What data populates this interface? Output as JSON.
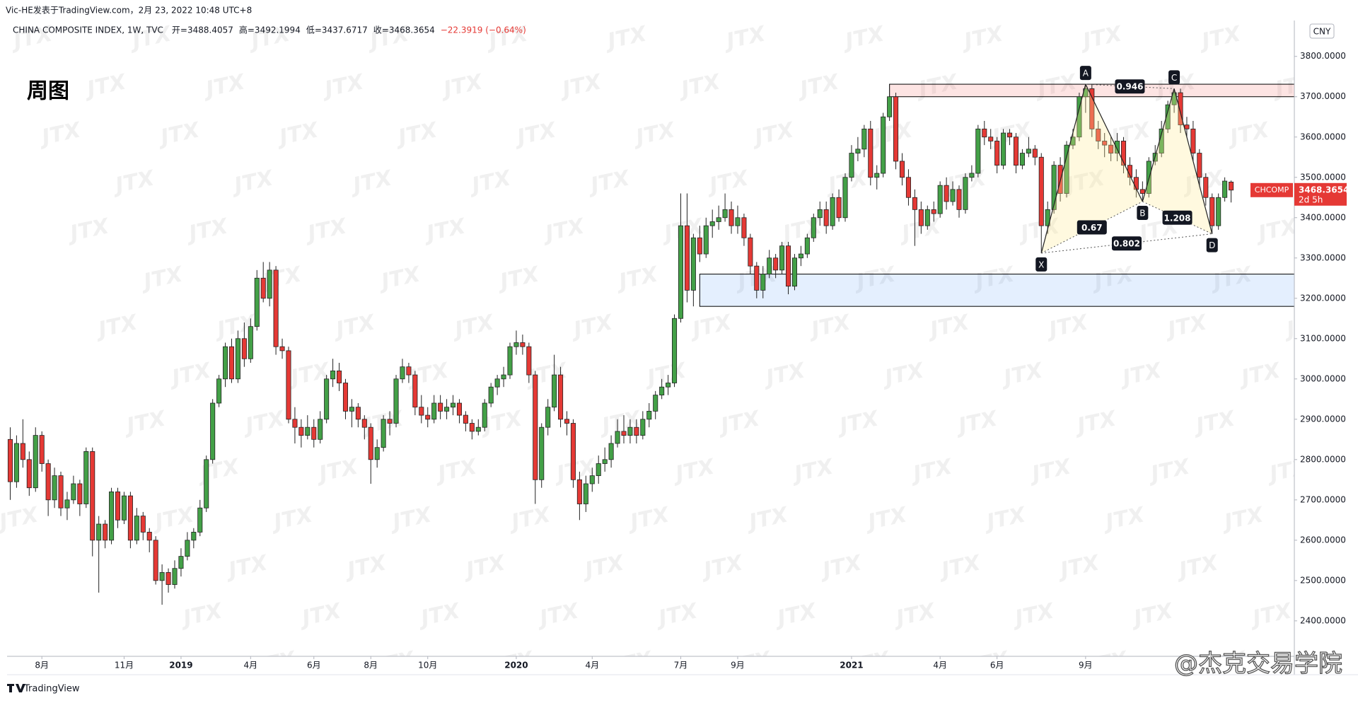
{
  "chart_data": {
    "type": "candlestick",
    "header": "Vic-HE发表于TradingView.com，2月 23, 2022 10:48 UTC+8",
    "symbol": "CHINA COMPOSITE INDEX, 1W, TVC",
    "legend_items": [
      "开=3488.4057",
      "高=3492.1994",
      "低=3437.6717",
      "收=3468.3654",
      "−22.3919 (−0.64%)"
    ],
    "title": "周图",
    "currency": "CNY",
    "symbol_tag": "CHCOMP",
    "countdown": "2d 5h",
    "watermark": "JTX",
    "signature": "@杰克交易学院",
    "brand": "TradingView",
    "up_color": "#43a047",
    "down_color": "#e53935",
    "xlim": [
      -0.5,
      203
    ],
    "ylim": [
      2312,
      3889
    ],
    "yticks": [
      {
        "value": 2400,
        "label": "2400.0000"
      },
      {
        "value": 2500,
        "label": "2500.0000"
      },
      {
        "value": 2600,
        "label": "2600.0000"
      },
      {
        "value": 2700,
        "label": "2700.0000"
      },
      {
        "value": 2800,
        "label": "2800.0000"
      },
      {
        "value": 2900,
        "label": "2900.0000"
      },
      {
        "value": 3000,
        "label": "3000.0000"
      },
      {
        "value": 3100,
        "label": "3100.0000"
      },
      {
        "value": 3200,
        "label": "3200.0000"
      },
      {
        "value": 3300,
        "label": "3300.0000"
      },
      {
        "value": 3400,
        "label": "3400.0000"
      },
      {
        "value": 3500,
        "label": "3500.0000"
      },
      {
        "value": 3600,
        "label": "3600.0000"
      },
      {
        "value": 3700,
        "label": "3700.0000"
      },
      {
        "value": 3800,
        "label": "3800.0000"
      }
    ],
    "xticks": [
      {
        "value": 5,
        "label": "8月"
      },
      {
        "value": 18,
        "label": "11月"
      },
      {
        "value": 27,
        "label": "2019"
      },
      {
        "value": 38,
        "label": "4月"
      },
      {
        "value": 48,
        "label": "6月"
      },
      {
        "value": 57,
        "label": "8月"
      },
      {
        "value": 66,
        "label": "10月"
      },
      {
        "value": 80,
        "label": "2020"
      },
      {
        "value": 92,
        "label": "4月"
      },
      {
        "value": 106,
        "label": "7月"
      },
      {
        "value": 115,
        "label": "9月"
      },
      {
        "value": 133,
        "label": "2021"
      },
      {
        "value": 147,
        "label": "4月"
      },
      {
        "value": 156,
        "label": "6月"
      },
      {
        "value": 170,
        "label": "9月"
      }
    ],
    "zones": [
      {
        "from": 139,
        "top": 3731,
        "bottom": 3700,
        "color": "rgba(244,67,54,0.14)"
      },
      {
        "from": 109,
        "top": 3260,
        "bottom": 3180,
        "color": "rgba(33,120,243,0.12)"
      }
    ],
    "pattern_points": [
      {
        "label": "X",
        "index": 163,
        "price": 3312
      },
      {
        "label": "A",
        "index": 170,
        "price": 3731
      },
      {
        "label": "B",
        "index": 179,
        "price": 3440
      },
      {
        "label": "C",
        "index": 184,
        "price": 3720
      },
      {
        "label": "D",
        "index": 190,
        "price": 3360
      }
    ],
    "ratios": [
      {
        "from": 1,
        "to": 3,
        "value": 0.946
      },
      {
        "from": 0,
        "to": 2,
        "value": 0.67
      },
      {
        "from": 0,
        "to": 4,
        "value": 0.802
      },
      {
        "from": 2,
        "to": 4,
        "value": 1.208
      }
    ],
    "candles": [
      [
        2850,
        2880,
        2700,
        2745
      ],
      [
        2745,
        2860,
        2730,
        2840
      ],
      [
        2840,
        2900,
        2780,
        2800
      ],
      [
        2800,
        2820,
        2710,
        2730
      ],
      [
        2730,
        2880,
        2720,
        2860
      ],
      [
        2860,
        2870,
        2770,
        2790
      ],
      [
        2790,
        2800,
        2660,
        2700
      ],
      [
        2700,
        2780,
        2680,
        2760
      ],
      [
        2760,
        2770,
        2660,
        2680
      ],
      [
        2680,
        2720,
        2650,
        2700
      ],
      [
        2700,
        2760,
        2690,
        2740
      ],
      [
        2740,
        2750,
        2660,
        2690
      ],
      [
        2690,
        2830,
        2680,
        2820
      ],
      [
        2820,
        2830,
        2560,
        2600
      ],
      [
        2600,
        2660,
        2470,
        2640
      ],
      [
        2640,
        2650,
        2580,
        2600
      ],
      [
        2600,
        2730,
        2590,
        2720
      ],
      [
        2720,
        2730,
        2630,
        2650
      ],
      [
        2650,
        2720,
        2640,
        2710
      ],
      [
        2710,
        2720,
        2580,
        2600
      ],
      [
        2600,
        2680,
        2590,
        2660
      ],
      [
        2660,
        2670,
        2600,
        2620
      ],
      [
        2620,
        2630,
        2570,
        2600
      ],
      [
        2600,
        2610,
        2490,
        2500
      ],
      [
        2500,
        2540,
        2440,
        2520
      ],
      [
        2520,
        2530,
        2470,
        2490
      ],
      [
        2490,
        2550,
        2480,
        2530
      ],
      [
        2530,
        2580,
        2510,
        2560
      ],
      [
        2560,
        2620,
        2550,
        2600
      ],
      [
        2600,
        2630,
        2580,
        2620
      ],
      [
        2620,
        2700,
        2610,
        2680
      ],
      [
        2680,
        2810,
        2670,
        2800
      ],
      [
        2800,
        2950,
        2790,
        2940
      ],
      [
        2940,
        3010,
        2930,
        3000
      ],
      [
        3000,
        3090,
        2980,
        3080
      ],
      [
        3080,
        3100,
        2990,
        3000
      ],
      [
        3000,
        3120,
        2990,
        3100
      ],
      [
        3100,
        3140,
        3030,
        3050
      ],
      [
        3050,
        3150,
        3040,
        3130
      ],
      [
        3130,
        3270,
        3120,
        3250
      ],
      [
        3250,
        3290,
        3190,
        3200
      ],
      [
        3200,
        3290,
        3180,
        3270
      ],
      [
        3270,
        3280,
        3060,
        3080
      ],
      [
        3080,
        3100,
        3050,
        3070
      ],
      [
        3070,
        3080,
        2890,
        2900
      ],
      [
        2900,
        2930,
        2840,
        2880
      ],
      [
        2880,
        2900,
        2830,
        2860
      ],
      [
        2860,
        2910,
        2850,
        2880
      ],
      [
        2880,
        2900,
        2830,
        2850
      ],
      [
        2850,
        2920,
        2840,
        2900
      ],
      [
        2900,
        3010,
        2890,
        3000
      ],
      [
        3000,
        3050,
        2980,
        3020
      ],
      [
        3020,
        3040,
        2970,
        2990
      ],
      [
        2990,
        3000,
        2900,
        2920
      ],
      [
        2920,
        2950,
        2880,
        2930
      ],
      [
        2930,
        2940,
        2880,
        2900
      ],
      [
        2900,
        2910,
        2850,
        2880
      ],
      [
        2880,
        2890,
        2740,
        2800
      ],
      [
        2800,
        2850,
        2780,
        2830
      ],
      [
        2830,
        2910,
        2820,
        2900
      ],
      [
        2900,
        2920,
        2860,
        2890
      ],
      [
        2890,
        3010,
        2880,
        3000
      ],
      [
        3000,
        3050,
        2990,
        3030
      ],
      [
        3030,
        3040,
        2990,
        3010
      ],
      [
        3010,
        3020,
        2910,
        2930
      ],
      [
        2930,
        2960,
        2890,
        2910
      ],
      [
        2910,
        2930,
        2880,
        2900
      ],
      [
        2900,
        2960,
        2890,
        2940
      ],
      [
        2940,
        2960,
        2900,
        2920
      ],
      [
        2920,
        2950,
        2900,
        2930
      ],
      [
        2930,
        2960,
        2910,
        2940
      ],
      [
        2940,
        2950,
        2890,
        2910
      ],
      [
        2910,
        2920,
        2870,
        2890
      ],
      [
        2890,
        2900,
        2850,
        2870
      ],
      [
        2870,
        2900,
        2860,
        2880
      ],
      [
        2880,
        2950,
        2870,
        2940
      ],
      [
        2940,
        2990,
        2930,
        2980
      ],
      [
        2980,
        3010,
        2960,
        3000
      ],
      [
        3000,
        3030,
        2980,
        3010
      ],
      [
        3010,
        3090,
        3000,
        3080
      ],
      [
        3080,
        3120,
        3060,
        3090
      ],
      [
        3090,
        3110,
        3060,
        3080
      ],
      [
        3080,
        3090,
        2990,
        3010
      ],
      [
        3010,
        3020,
        2690,
        2750
      ],
      [
        2750,
        2890,
        2730,
        2880
      ],
      [
        2880,
        2950,
        2860,
        2930
      ],
      [
        2930,
        3060,
        2920,
        3010
      ],
      [
        3010,
        3030,
        2880,
        2900
      ],
      [
        2900,
        2920,
        2860,
        2890
      ],
      [
        2890,
        2900,
        2730,
        2750
      ],
      [
        2750,
        2770,
        2650,
        2690
      ],
      [
        2690,
        2760,
        2670,
        2740
      ],
      [
        2740,
        2780,
        2720,
        2760
      ],
      [
        2760,
        2810,
        2740,
        2790
      ],
      [
        2790,
        2830,
        2770,
        2800
      ],
      [
        2800,
        2860,
        2780,
        2840
      ],
      [
        2840,
        2900,
        2830,
        2870
      ],
      [
        2870,
        2910,
        2840,
        2860
      ],
      [
        2860,
        2900,
        2840,
        2880
      ],
      [
        2880,
        2900,
        2840,
        2860
      ],
      [
        2860,
        2920,
        2850,
        2900
      ],
      [
        2900,
        2940,
        2880,
        2920
      ],
      [
        2920,
        2970,
        2900,
        2960
      ],
      [
        2960,
        3000,
        2950,
        2980
      ],
      [
        2980,
        3010,
        2960,
        2990
      ],
      [
        2990,
        3160,
        2980,
        3150
      ],
      [
        3150,
        3460,
        3140,
        3380
      ],
      [
        3380,
        3460,
        3190,
        3220
      ],
      [
        3220,
        3360,
        3180,
        3350
      ],
      [
        3350,
        3380,
        3290,
        3310
      ],
      [
        3310,
        3400,
        3300,
        3380
      ],
      [
        3380,
        3420,
        3350,
        3390
      ],
      [
        3390,
        3430,
        3370,
        3400
      ],
      [
        3400,
        3460,
        3390,
        3420
      ],
      [
        3420,
        3440,
        3360,
        3380
      ],
      [
        3380,
        3430,
        3360,
        3400
      ],
      [
        3400,
        3410,
        3330,
        3350
      ],
      [
        3350,
        3360,
        3260,
        3280
      ],
      [
        3280,
        3290,
        3200,
        3220
      ],
      [
        3220,
        3280,
        3200,
        3260
      ],
      [
        3260,
        3320,
        3250,
        3300
      ],
      [
        3300,
        3310,
        3250,
        3270
      ],
      [
        3270,
        3340,
        3260,
        3330
      ],
      [
        3330,
        3340,
        3210,
        3230
      ],
      [
        3230,
        3310,
        3220,
        3300
      ],
      [
        3300,
        3330,
        3280,
        3310
      ],
      [
        3310,
        3360,
        3300,
        3350
      ],
      [
        3350,
        3410,
        3340,
        3400
      ],
      [
        3400,
        3440,
        3380,
        3420
      ],
      [
        3420,
        3440,
        3360,
        3380
      ],
      [
        3380,
        3460,
        3370,
        3450
      ],
      [
        3450,
        3470,
        3390,
        3400
      ],
      [
        3400,
        3510,
        3390,
        3500
      ],
      [
        3500,
        3580,
        3490,
        3560
      ],
      [
        3560,
        3600,
        3540,
        3570
      ],
      [
        3570,
        3630,
        3550,
        3620
      ],
      [
        3620,
        3640,
        3480,
        3500
      ],
      [
        3500,
        3530,
        3470,
        3510
      ],
      [
        3510,
        3660,
        3500,
        3650
      ],
      [
        3650,
        3731,
        3640,
        3700
      ],
      [
        3700,
        3710,
        3520,
        3540
      ],
      [
        3540,
        3560,
        3480,
        3500
      ],
      [
        3500,
        3520,
        3430,
        3450
      ],
      [
        3450,
        3470,
        3330,
        3420
      ],
      [
        3420,
        3440,
        3360,
        3380
      ],
      [
        3380,
        3430,
        3370,
        3420
      ],
      [
        3420,
        3440,
        3390,
        3410
      ],
      [
        3410,
        3490,
        3400,
        3480
      ],
      [
        3480,
        3500,
        3420,
        3440
      ],
      [
        3440,
        3490,
        3430,
        3470
      ],
      [
        3470,
        3480,
        3400,
        3420
      ],
      [
        3420,
        3510,
        3410,
        3500
      ],
      [
        3500,
        3530,
        3490,
        3510
      ],
      [
        3510,
        3630,
        3500,
        3620
      ],
      [
        3620,
        3640,
        3580,
        3600
      ],
      [
        3600,
        3620,
        3570,
        3590
      ],
      [
        3590,
        3600,
        3510,
        3530
      ],
      [
        3530,
        3620,
        3520,
        3610
      ],
      [
        3610,
        3620,
        3580,
        3600
      ],
      [
        3600,
        3610,
        3510,
        3530
      ],
      [
        3530,
        3570,
        3520,
        3560
      ],
      [
        3560,
        3600,
        3550,
        3570
      ],
      [
        3570,
        3580,
        3530,
        3550
      ],
      [
        3550,
        3560,
        3312,
        3380
      ],
      [
        3380,
        3440,
        3360,
        3420
      ],
      [
        3420,
        3540,
        3410,
        3530
      ],
      [
        3530,
        3550,
        3440,
        3460
      ],
      [
        3460,
        3590,
        3450,
        3580
      ],
      [
        3580,
        3620,
        3570,
        3600
      ],
      [
        3600,
        3710,
        3590,
        3700
      ],
      [
        3700,
        3731,
        3660,
        3720
      ],
      [
        3720,
        3730,
        3600,
        3620
      ],
      [
        3620,
        3640,
        3570,
        3590
      ],
      [
        3590,
        3610,
        3550,
        3580
      ],
      [
        3580,
        3600,
        3540,
        3560
      ],
      [
        3560,
        3610,
        3540,
        3590
      ],
      [
        3590,
        3600,
        3510,
        3530
      ],
      [
        3530,
        3550,
        3480,
        3500
      ],
      [
        3500,
        3520,
        3450,
        3470
      ],
      [
        3470,
        3490,
        3440,
        3460
      ],
      [
        3460,
        3550,
        3450,
        3540
      ],
      [
        3540,
        3580,
        3530,
        3560
      ],
      [
        3560,
        3640,
        3550,
        3620
      ],
      [
        3620,
        3690,
        3610,
        3680
      ],
      [
        3680,
        3720,
        3660,
        3710
      ],
      [
        3710,
        3720,
        3610,
        3630
      ],
      [
        3630,
        3650,
        3600,
        3620
      ],
      [
        3620,
        3640,
        3540,
        3560
      ],
      [
        3560,
        3570,
        3480,
        3500
      ],
      [
        3500,
        3510,
        3430,
        3450
      ],
      [
        3450,
        3460,
        3360,
        3380
      ],
      [
        3380,
        3460,
        3370,
        3450
      ],
      [
        3450,
        3500,
        3440,
        3490.7573
      ],
      [
        3488.4057,
        3492.1994,
        3437.6717,
        3468.3654
      ]
    ]
  }
}
